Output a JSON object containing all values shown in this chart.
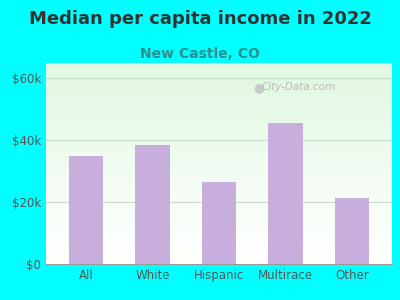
{
  "title": "Median per capita income in 2022",
  "subtitle": "New Castle, CO",
  "categories": [
    "All",
    "White",
    "Hispanic",
    "Multirace",
    "Other"
  ],
  "values": [
    35000,
    38500,
    26500,
    45500,
    21500
  ],
  "bar_color": "#c8aedd",
  "title_color": "#333333",
  "subtitle_color": "#2a9090",
  "background_outer": "#00ffff",
  "ylim": [
    0,
    65000
  ],
  "yticks": [
    0,
    20000,
    40000,
    60000
  ],
  "ytick_labels": [
    "$0",
    "$20k",
    "$40k",
    "$60k"
  ],
  "watermark": "City-Data.com",
  "title_fontsize": 13,
  "subtitle_fontsize": 10,
  "tick_fontsize": 8.5,
  "grid_color": "#c8dcc8",
  "axis_color": "#999999"
}
